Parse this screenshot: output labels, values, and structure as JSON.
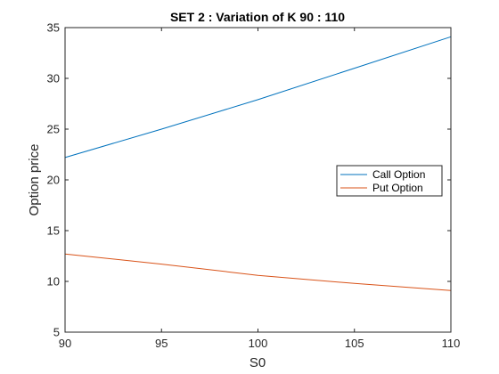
{
  "chart_data": {
    "type": "line",
    "title": "SET 2 : Variation of K 90 : 110",
    "xlabel": "S0",
    "ylabel": "Option price",
    "xlim": [
      90,
      110
    ],
    "ylim": [
      5,
      35
    ],
    "xticks": [
      90,
      95,
      100,
      105,
      110
    ],
    "yticks": [
      5,
      10,
      15,
      20,
      25,
      30,
      35
    ],
    "grid": false,
    "legend_position": "right",
    "x": [
      90,
      95,
      100,
      105,
      110
    ],
    "series": [
      {
        "name": "Call Option",
        "color": "#0072BD",
        "values": [
          22.2,
          25.0,
          27.9,
          31.0,
          34.1
        ]
      },
      {
        "name": "Put Option",
        "color": "#D95319",
        "values": [
          12.7,
          11.7,
          10.6,
          9.8,
          9.1
        ]
      }
    ]
  }
}
